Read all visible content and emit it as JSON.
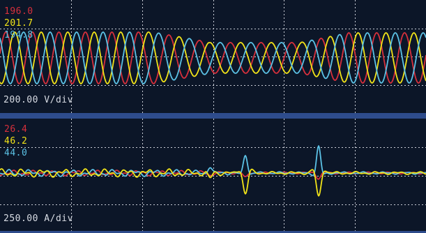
{
  "colors": {
    "background": "#0c1628",
    "grid": "#c9cdd6",
    "divider": "#2e4c8c",
    "phase_r": "#d8303c",
    "phase_y": "#f2e418",
    "phase_b": "#5cc2e6",
    "label": "#d8dce4"
  },
  "voltage_panel": {
    "readouts": [
      {
        "value": "196.0",
        "color": "#d8303c"
      },
      {
        "value": "201.7",
        "color": "#f2e418"
      },
      {
        "value": "194.8",
        "color": "#5cc2e6"
      }
    ],
    "scale": "200.00 V/div"
  },
  "current_panel": {
    "readouts": [
      {
        "value": "26.4",
        "color": "#d8303c"
      },
      {
        "value": "46.2",
        "color": "#f2e418"
      },
      {
        "value": "44.0",
        "color": "#5cc2e6"
      }
    ],
    "scale": "250.00 A/div"
  }
}
